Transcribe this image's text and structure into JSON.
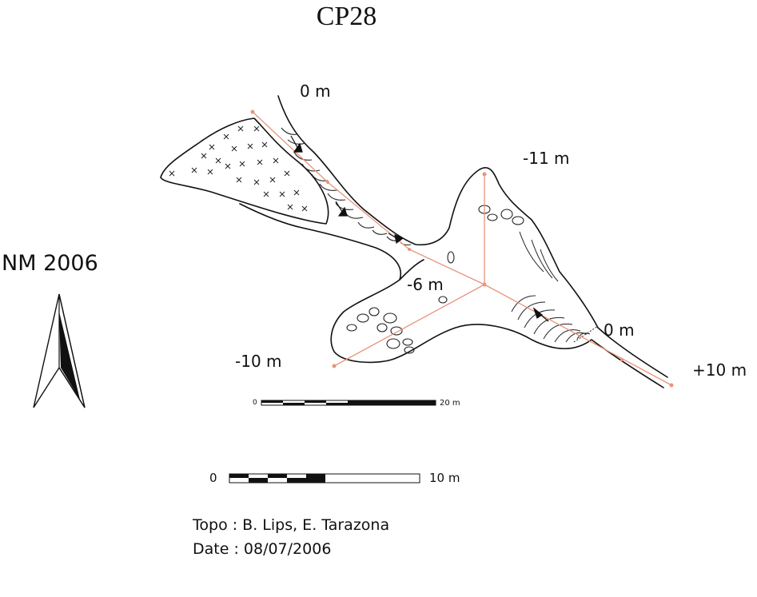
{
  "title": "CP28",
  "survey_label": "NM 2006",
  "depth_labels": {
    "entrance_top": "0 m",
    "upper_right": "-11 m",
    "junction": "-6 m",
    "lower_left": "-10 m",
    "right_mid": "0 m",
    "far_right": "+10 m"
  },
  "scale_small": {
    "start": "0",
    "end": "20 m"
  },
  "scale_large": {
    "start": "0",
    "end": "10 m"
  },
  "credits": {
    "topo": "Topo : B. Lips, E. Tarazona",
    "date": "Date : 08/07/2006"
  },
  "colors": {
    "survey_line": "#e8957a",
    "outline": "#111111"
  },
  "icons": [
    "north-arrow-icon"
  ]
}
